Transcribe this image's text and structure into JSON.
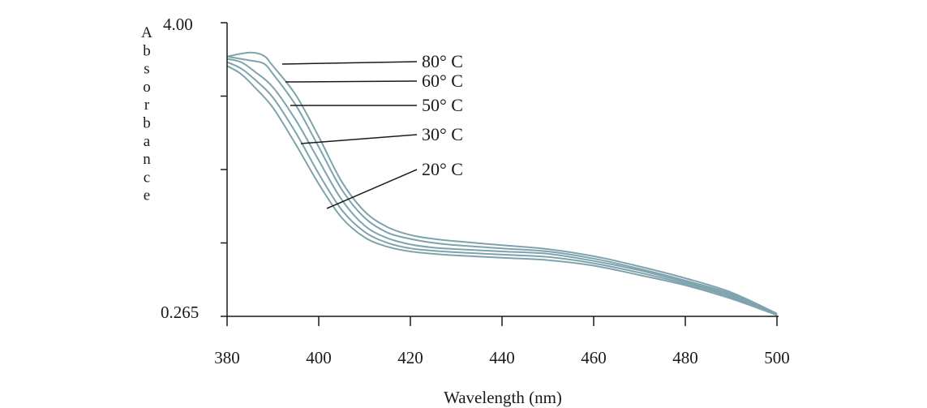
{
  "chart_data": {
    "type": "line",
    "title": "",
    "xlabel": "Wavelength (nm)",
    "ylabel": "Absorbance",
    "xlim": [
      380,
      500
    ],
    "ylim": [
      0.265,
      4.0
    ],
    "x_ticks": [
      "380",
      "400",
      "420",
      "440",
      "460",
      "480",
      "500"
    ],
    "y_ticks": [
      "0.265",
      "4.00"
    ],
    "grid": false,
    "colors": {
      "series": "#7fa3ad",
      "axis": "#1a1a1a",
      "leader": "#1a1a1a"
    },
    "series": [
      {
        "name": "80° C",
        "x": [
          380,
          385,
          388,
          390,
          395,
          400,
          405,
          410,
          415,
          420,
          425,
          430,
          440,
          450,
          460,
          470,
          480,
          490,
          500
        ],
        "y": [
          3.57,
          3.62,
          3.58,
          3.45,
          3.08,
          2.55,
          1.98,
          1.6,
          1.4,
          1.3,
          1.25,
          1.22,
          1.17,
          1.12,
          1.03,
          0.9,
          0.75,
          0.57,
          0.3
        ]
      },
      {
        "name": "60° C",
        "x": [
          380,
          385,
          388,
          390,
          395,
          400,
          405,
          410,
          415,
          420,
          425,
          430,
          440,
          450,
          460,
          470,
          480,
          490,
          500
        ],
        "y": [
          3.57,
          3.52,
          3.48,
          3.35,
          2.95,
          2.42,
          1.88,
          1.52,
          1.33,
          1.25,
          1.2,
          1.17,
          1.13,
          1.09,
          1.0,
          0.87,
          0.72,
          0.55,
          0.29
        ]
      },
      {
        "name": "50° C",
        "x": [
          380,
          383,
          386,
          390,
          395,
          400,
          405,
          410,
          415,
          420,
          425,
          430,
          440,
          450,
          460,
          470,
          480,
          490,
          500
        ],
        "y": [
          3.54,
          3.5,
          3.38,
          3.18,
          2.76,
          2.25,
          1.75,
          1.42,
          1.26,
          1.18,
          1.14,
          1.12,
          1.09,
          1.06,
          0.97,
          0.85,
          0.7,
          0.53,
          0.29
        ]
      },
      {
        "name": "30° C",
        "x": [
          380,
          383,
          386,
          390,
          395,
          400,
          405,
          410,
          415,
          420,
          425,
          430,
          440,
          450,
          460,
          470,
          480,
          490,
          500
        ],
        "y": [
          3.5,
          3.42,
          3.28,
          3.05,
          2.6,
          2.08,
          1.62,
          1.34,
          1.2,
          1.13,
          1.1,
          1.08,
          1.05,
          1.02,
          0.94,
          0.82,
          0.68,
          0.51,
          0.28
        ]
      },
      {
        "name": "20° C",
        "x": [
          380,
          383,
          386,
          390,
          395,
          400,
          405,
          410,
          415,
          420,
          425,
          430,
          440,
          450,
          460,
          470,
          480,
          490,
          500
        ],
        "y": [
          3.45,
          3.35,
          3.18,
          2.92,
          2.45,
          1.95,
          1.52,
          1.27,
          1.15,
          1.09,
          1.06,
          1.04,
          1.01,
          0.98,
          0.91,
          0.79,
          0.66,
          0.49,
          0.28
        ]
      }
    ]
  }
}
